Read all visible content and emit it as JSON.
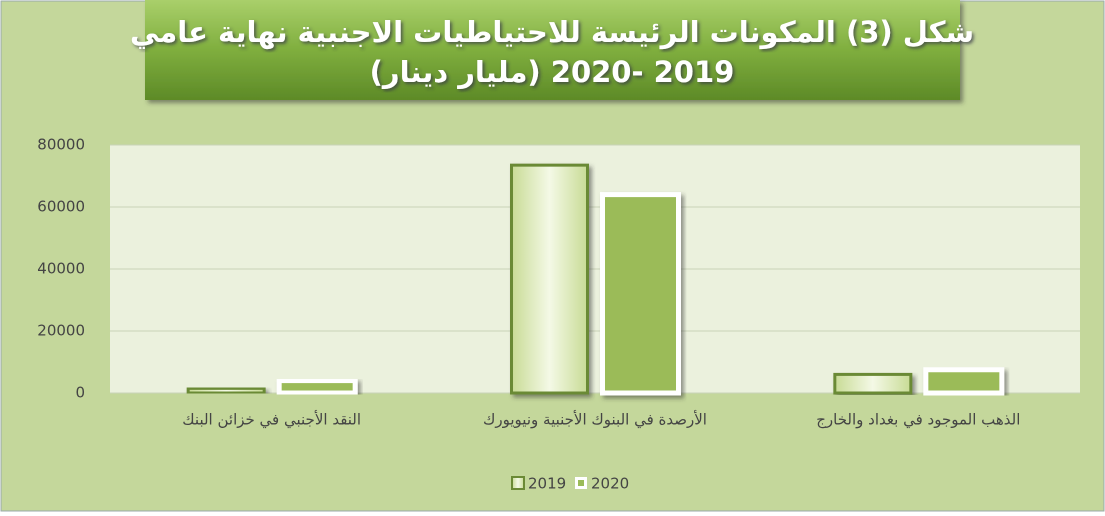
{
  "chart_data": {
    "type": "bar",
    "title_lines": [
      "شكل (3) المكونات الرئيسة للاحتياطيات الاجنبية نهاية عامي",
      "2019 -2020 (مليار دينار)"
    ],
    "categories": [
      "النقد الأجنبي في خزائن البنك",
      "الأرصدة في البنوك الأجنبية ونيويورك",
      "الذهب الموجود في بغداد والخارج"
    ],
    "series": [
      {
        "name": "2019",
        "color": "#e3eec4",
        "values": [
          1500,
          73500,
          6000
        ]
      },
      {
        "name": "2020",
        "color": "#9bbb59",
        "values": [
          4000,
          64000,
          7500
        ]
      }
    ],
    "ylim": [
      0,
      80000
    ],
    "yticks": [
      0,
      20000,
      40000,
      60000,
      80000
    ],
    "grid": true,
    "legend": "bottom"
  }
}
